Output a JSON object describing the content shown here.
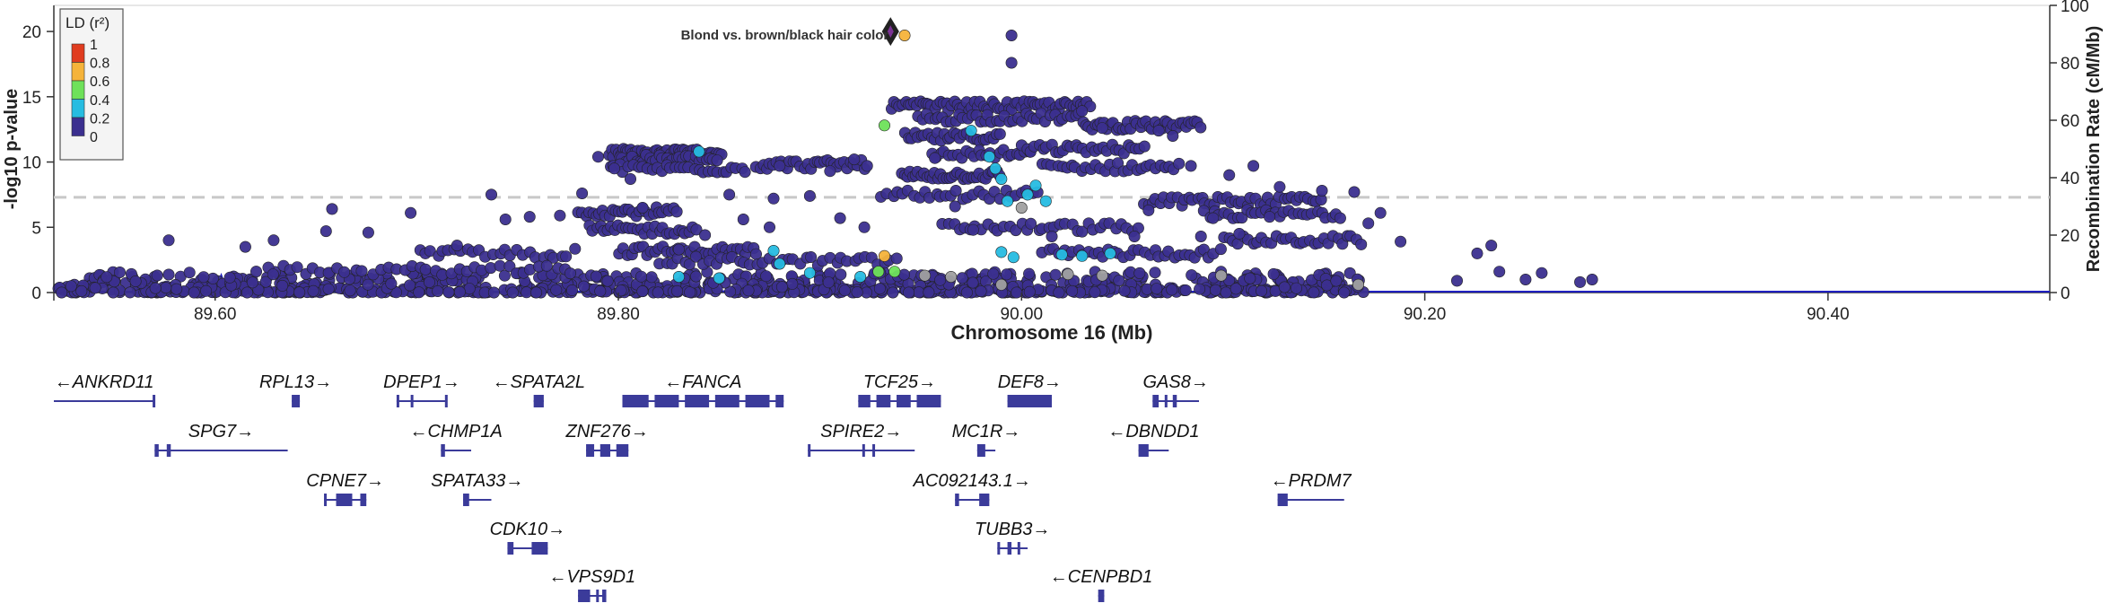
{
  "chart_data": {
    "type": "scatter",
    "title": "",
    "xlabel": "Chromosome 16 (Mb)",
    "ylabel_left": "-log10 p-value",
    "ylabel_right": "Recombination Rate (cM/Mb)",
    "xlim": [
      89.52,
      90.51
    ],
    "ylim_left": [
      0,
      22
    ],
    "ylim_right": [
      0,
      100
    ],
    "x_ticks": [
      "89.60",
      "89.80",
      "90.00",
      "90.20",
      "90.40"
    ],
    "x_tick_values": [
      89.6,
      89.8,
      90.0,
      90.2,
      90.4
    ],
    "y_ticks_left": [
      "0",
      "5",
      "10",
      "15",
      "20"
    ],
    "y_ticks_right": [
      "0",
      "20",
      "40",
      "60",
      "80",
      "100"
    ],
    "significance_line": 7.3,
    "grid": false,
    "colors": {
      "ld_0": "#3b2f8f",
      "ld_0_2": "#26bce1",
      "ld_0_4": "#6ee15a",
      "ld_0_6": "#f5b33a",
      "ld_0_8": "#e03c1f",
      "ld_na": "#a0a0a0",
      "recomb_line": "#1f1fbf",
      "gene": "#3b3b9a",
      "lead": "#7b3294"
    },
    "legend": {
      "title": "LD (r²)",
      "placement": "top-left",
      "labels": [
        "1",
        "0.8",
        "0.6",
        "0.4",
        "0.2",
        "0"
      ]
    },
    "lead_snp": {
      "x": 89.935,
      "y": 20.0,
      "label": "Blond vs. brown/black hair color"
    },
    "highlight_points": [
      {
        "x": 89.942,
        "y": 19.7,
        "ld": "ld_0_6"
      },
      {
        "x": 89.932,
        "y": 12.8,
        "ld": "ld_0_4"
      },
      {
        "x": 89.84,
        "y": 10.8,
        "ld": "ld_0_2"
      },
      {
        "x": 89.975,
        "y": 12.4,
        "ld": "ld_0_2"
      },
      {
        "x": 89.984,
        "y": 10.4,
        "ld": "ld_0_2"
      },
      {
        "x": 89.987,
        "y": 9.5,
        "ld": "ld_0_2"
      },
      {
        "x": 89.99,
        "y": 8.7,
        "ld": "ld_0_2"
      },
      {
        "x": 89.993,
        "y": 7.0,
        "ld": "ld_0_2"
      },
      {
        "x": 90.0,
        "y": 6.5,
        "ld": "ld_na"
      },
      {
        "x": 90.003,
        "y": 7.5,
        "ld": "ld_0_2"
      },
      {
        "x": 90.007,
        "y": 8.2,
        "ld": "ld_0_2"
      },
      {
        "x": 90.012,
        "y": 7.0,
        "ld": "ld_0_2"
      },
      {
        "x": 89.877,
        "y": 3.2,
        "ld": "ld_0_2"
      },
      {
        "x": 89.88,
        "y": 2.2,
        "ld": "ld_0_2"
      },
      {
        "x": 89.895,
        "y": 1.5,
        "ld": "ld_0_2"
      },
      {
        "x": 89.932,
        "y": 2.8,
        "ld": "ld_0_6"
      },
      {
        "x": 89.929,
        "y": 1.6,
        "ld": "ld_0_4"
      },
      {
        "x": 89.937,
        "y": 1.6,
        "ld": "ld_0_4"
      },
      {
        "x": 89.99,
        "y": 3.1,
        "ld": "ld_0_2"
      },
      {
        "x": 89.996,
        "y": 2.7,
        "ld": "ld_0_2"
      },
      {
        "x": 90.02,
        "y": 2.9,
        "ld": "ld_0_2"
      },
      {
        "x": 90.03,
        "y": 2.8,
        "ld": "ld_0_2"
      },
      {
        "x": 90.044,
        "y": 3.0,
        "ld": "ld_0_2"
      },
      {
        "x": 89.85,
        "y": 1.1,
        "ld": "ld_0_2"
      },
      {
        "x": 89.83,
        "y": 1.2,
        "ld": "ld_0_2"
      },
      {
        "x": 89.92,
        "y": 1.2,
        "ld": "ld_0_2"
      },
      {
        "x": 89.965,
        "y": 1.2,
        "ld": "ld_na"
      },
      {
        "x": 89.952,
        "y": 1.3,
        "ld": "ld_na"
      },
      {
        "x": 90.04,
        "y": 1.3,
        "ld": "ld_na"
      },
      {
        "x": 90.099,
        "y": 1.3,
        "ld": "ld_na"
      },
      {
        "x": 90.167,
        "y": 0.6,
        "ld": "ld_na"
      },
      {
        "x": 89.99,
        "y": 0.6,
        "ld": "ld_na"
      },
      {
        "x": 90.023,
        "y": 1.4,
        "ld": "ld_na"
      }
    ],
    "sparse_points": [
      {
        "x": 89.577,
        "y": 4.0
      },
      {
        "x": 89.629,
        "y": 4.0
      },
      {
        "x": 89.615,
        "y": 3.5
      },
      {
        "x": 89.658,
        "y": 6.4
      },
      {
        "x": 89.655,
        "y": 4.7
      },
      {
        "x": 89.676,
        "y": 4.6
      },
      {
        "x": 89.697,
        "y": 6.1
      },
      {
        "x": 89.737,
        "y": 7.5
      },
      {
        "x": 89.756,
        "y": 5.8
      },
      {
        "x": 89.744,
        "y": 5.6
      },
      {
        "x": 89.72,
        "y": 3.6
      },
      {
        "x": 89.782,
        "y": 7.6
      },
      {
        "x": 89.771,
        "y": 5.9
      },
      {
        "x": 89.877,
        "y": 7.2
      },
      {
        "x": 89.895,
        "y": 7.4
      },
      {
        "x": 89.995,
        "y": 19.7
      },
      {
        "x": 89.995,
        "y": 17.6
      },
      {
        "x": 90.226,
        "y": 3.0
      },
      {
        "x": 90.233,
        "y": 3.6
      },
      {
        "x": 90.237,
        "y": 1.6
      },
      {
        "x": 90.258,
        "y": 1.5
      },
      {
        "x": 90.25,
        "y": 1.0
      },
      {
        "x": 90.216,
        "y": 0.9
      },
      {
        "x": 90.277,
        "y": 0.8
      },
      {
        "x": 90.283,
        "y": 1.0
      },
      {
        "x": 90.188,
        "y": 3.9
      },
      {
        "x": 90.172,
        "y": 5.3
      },
      {
        "x": 90.178,
        "y": 6.1
      },
      {
        "x": 90.165,
        "y": 7.7
      },
      {
        "x": 90.149,
        "y": 7.8
      },
      {
        "x": 90.128,
        "y": 8.1
      },
      {
        "x": 90.115,
        "y": 9.7
      },
      {
        "x": 90.103,
        "y": 9.0
      },
      {
        "x": 90.084,
        "y": 9.7
      },
      {
        "x": 90.075,
        "y": 12.0
      },
      {
        "x": 90.068,
        "y": 12.4
      },
      {
        "x": 90.061,
        "y": 11.2
      },
      {
        "x": 90.04,
        "y": 12.6
      },
      {
        "x": 90.03,
        "y": 13.9
      },
      {
        "x": 89.917,
        "y": 10.2
      },
      {
        "x": 89.905,
        "y": 9.3
      },
      {
        "x": 89.88,
        "y": 9.7
      },
      {
        "x": 89.875,
        "y": 5.0
      },
      {
        "x": 89.862,
        "y": 5.6
      },
      {
        "x": 89.855,
        "y": 7.5
      },
      {
        "x": 89.812,
        "y": 6.5
      },
      {
        "x": 89.806,
        "y": 8.7
      },
      {
        "x": 89.798,
        "y": 9.5
      },
      {
        "x": 89.79,
        "y": 10.4
      },
      {
        "x": 89.83,
        "y": 3.3
      },
      {
        "x": 89.843,
        "y": 4.4
      },
      {
        "x": 89.922,
        "y": 5.0
      },
      {
        "x": 89.91,
        "y": 5.7
      },
      {
        "x": 89.957,
        "y": 10.3
      },
      {
        "x": 89.967,
        "y": 6.6
      },
      {
        "x": 89.976,
        "y": 4.8
      },
      {
        "x": 90.015,
        "y": 4.3
      },
      {
        "x": 90.056,
        "y": 4.3
      },
      {
        "x": 90.063,
        "y": 6.3
      },
      {
        "x": 90.089,
        "y": 4.3
      },
      {
        "x": 90.095,
        "y": 5.7
      },
      {
        "x": 90.108,
        "y": 4.5
      },
      {
        "x": 90.123,
        "y": 5.8
      }
    ],
    "bands": [
      {
        "x0": 89.795,
        "x1": 89.852,
        "y": 10.7,
        "n": 48
      },
      {
        "x0": 89.8,
        "x1": 89.85,
        "y": 10.2,
        "n": 30
      },
      {
        "x0": 89.795,
        "x1": 89.865,
        "y": 9.5,
        "n": 30
      },
      {
        "x0": 89.868,
        "x1": 89.925,
        "y": 9.8,
        "n": 34
      },
      {
        "x0": 89.935,
        "x1": 90.035,
        "y": 14.3,
        "n": 70
      },
      {
        "x0": 89.948,
        "x1": 90.03,
        "y": 13.4,
        "n": 40
      },
      {
        "x0": 90.03,
        "x1": 90.09,
        "y": 12.8,
        "n": 40
      },
      {
        "x0": 89.942,
        "x1": 89.99,
        "y": 11.9,
        "n": 30
      },
      {
        "x0": 89.94,
        "x1": 89.99,
        "y": 9.0,
        "n": 36
      },
      {
        "x0": 89.955,
        "x1": 90.005,
        "y": 10.6,
        "n": 24
      },
      {
        "x0": 90.0,
        "x1": 90.06,
        "y": 11.0,
        "n": 30
      },
      {
        "x0": 90.01,
        "x1": 90.08,
        "y": 9.6,
        "n": 30
      },
      {
        "x0": 90.06,
        "x1": 90.15,
        "y": 7.0,
        "n": 44
      },
      {
        "x0": 90.09,
        "x1": 90.16,
        "y": 6.0,
        "n": 30
      },
      {
        "x0": 89.78,
        "x1": 89.83,
        "y": 6.2,
        "n": 30
      },
      {
        "x0": 89.785,
        "x1": 89.84,
        "y": 4.8,
        "n": 30
      },
      {
        "x0": 89.8,
        "x1": 89.87,
        "y": 3.2,
        "n": 36
      },
      {
        "x0": 89.7,
        "x1": 89.78,
        "y": 3.0,
        "n": 26
      },
      {
        "x0": 89.82,
        "x1": 89.94,
        "y": 2.4,
        "n": 40
      },
      {
        "x0": 89.93,
        "x1": 90.01,
        "y": 7.5,
        "n": 30
      },
      {
        "x0": 89.96,
        "x1": 90.06,
        "y": 5.0,
        "n": 36
      },
      {
        "x0": 90.01,
        "x1": 90.1,
        "y": 3.0,
        "n": 36
      },
      {
        "x0": 90.1,
        "x1": 90.17,
        "y": 4.0,
        "n": 30
      },
      {
        "x0": 89.62,
        "x1": 89.78,
        "y": 1.7,
        "n": 40
      }
    ],
    "baseline": {
      "x0": 89.521,
      "x1": 90.17,
      "n": 900,
      "ymax": 1.6
    },
    "recombination": [
      [
        89.52,
        0.3
      ],
      [
        89.6,
        0.3
      ],
      [
        89.603,
        6.0
      ],
      [
        89.606,
        0.3
      ],
      [
        89.7,
        0.3
      ],
      [
        89.8,
        0.4
      ],
      [
        89.9,
        0.5
      ],
      [
        90.0,
        0.4
      ],
      [
        90.1,
        0.3
      ],
      [
        90.2,
        0.3
      ],
      [
        90.3,
        0.3
      ],
      [
        90.4,
        0.3
      ],
      [
        90.51,
        0.3
      ]
    ],
    "genes": [
      {
        "name": "ANKRD11",
        "label": "←ANKRD11",
        "start": 89.52,
        "end": 89.57,
        "row": 0,
        "exons": [
          [
            89.569,
            89.57
          ]
        ]
      },
      {
        "name": "RPL13",
        "label": "RPL13→",
        "start": 89.638,
        "end": 89.642,
        "row": 0,
        "exons": [
          [
            89.638,
            89.642
          ]
        ]
      },
      {
        "name": "DPEP1",
        "label": "DPEP1→",
        "start": 89.69,
        "end": 89.715,
        "row": 0,
        "exons": [
          [
            89.69,
            89.691
          ],
          [
            89.697,
            89.698
          ],
          [
            89.714,
            89.715
          ]
        ]
      },
      {
        "name": "SPATA2L",
        "label": "←SPATA2L",
        "start": 89.758,
        "end": 89.763,
        "row": 0,
        "exons": [
          [
            89.758,
            89.763
          ]
        ]
      },
      {
        "name": "FANCA",
        "label": "←FANCA",
        "start": 89.802,
        "end": 89.882,
        "row": 0,
        "exons": [
          [
            89.802,
            89.815
          ],
          [
            89.818,
            89.83
          ],
          [
            89.833,
            89.845
          ],
          [
            89.848,
            89.86
          ],
          [
            89.863,
            89.875
          ],
          [
            89.878,
            89.882
          ]
        ]
      },
      {
        "name": "TCF25",
        "label": "TCF25→",
        "start": 89.919,
        "end": 89.96,
        "row": 0,
        "exons": [
          [
            89.919,
            89.925
          ],
          [
            89.928,
            89.935
          ],
          [
            89.938,
            89.945
          ],
          [
            89.948,
            89.96
          ]
        ]
      },
      {
        "name": "DEF8",
        "label": "DEF8→",
        "start": 89.993,
        "end": 90.015,
        "row": 0,
        "exons": [
          [
            89.993,
            90.015
          ]
        ]
      },
      {
        "name": "GAS8",
        "label": "GAS8→",
        "start": 90.065,
        "end": 90.088,
        "row": 0,
        "exons": [
          [
            90.065,
            90.068
          ],
          [
            90.071,
            90.072
          ],
          [
            90.075,
            90.077
          ]
        ]
      },
      {
        "name": "SPG7",
        "label": "SPG7→",
        "start": 89.57,
        "end": 89.636,
        "row": 1,
        "exons": [
          [
            89.57,
            89.572
          ],
          [
            89.576,
            89.578
          ]
        ]
      },
      {
        "name": "CHMP1A",
        "label": "←CHMP1A",
        "start": 89.712,
        "end": 89.727,
        "row": 1,
        "exons": [
          [
            89.712,
            89.714
          ]
        ]
      },
      {
        "name": "ZNF276",
        "label": "ZNF276→",
        "start": 89.784,
        "end": 89.805,
        "row": 1,
        "exons": [
          [
            89.784,
            89.788
          ],
          [
            89.791,
            89.796
          ],
          [
            89.799,
            89.805
          ]
        ]
      },
      {
        "name": "SPIRE2",
        "label": "SPIRE2→",
        "start": 89.894,
        "end": 89.947,
        "row": 1,
        "exons": [
          [
            89.894,
            89.895
          ],
          [
            89.921,
            89.922
          ],
          [
            89.926,
            89.927
          ]
        ]
      },
      {
        "name": "MC1R",
        "label": "MC1R→",
        "start": 89.978,
        "end": 89.987,
        "row": 1,
        "exons": [
          [
            89.978,
            89.982
          ]
        ]
      },
      {
        "name": "DBNDD1",
        "label": "←DBNDD1",
        "start": 90.058,
        "end": 90.073,
        "row": 1,
        "exons": [
          [
            90.058,
            90.063
          ]
        ]
      },
      {
        "name": "CPNE7",
        "label": "CPNE7→",
        "start": 89.654,
        "end": 89.675,
        "row": 2,
        "exons": [
          [
            89.654,
            89.655
          ],
          [
            89.66,
            89.668
          ],
          [
            89.672,
            89.675
          ]
        ]
      },
      {
        "name": "SPATA33",
        "label": "SPATA33→",
        "start": 89.723,
        "end": 89.737,
        "row": 2,
        "exons": [
          [
            89.723,
            89.726
          ]
        ]
      },
      {
        "name": "AC092143.1",
        "label": "AC092143.1→",
        "start": 89.967,
        "end": 89.984,
        "row": 2,
        "exons": [
          [
            89.967,
            89.969
          ],
          [
            89.979,
            89.984
          ]
        ]
      },
      {
        "name": "PRDM7",
        "label": "←PRDM7",
        "start": 90.127,
        "end": 90.16,
        "row": 2,
        "exons": [
          [
            90.127,
            90.132
          ]
        ]
      },
      {
        "name": "CDK10",
        "label": "CDK10→",
        "start": 89.745,
        "end": 89.765,
        "row": 3,
        "exons": [
          [
            89.745,
            89.748
          ],
          [
            89.757,
            89.765
          ]
        ]
      },
      {
        "name": "TUBB3",
        "label": "TUBB3→",
        "start": 89.988,
        "end": 90.003,
        "row": 3,
        "exons": [
          [
            89.988,
            89.989
          ],
          [
            89.993,
            89.995
          ],
          [
            89.998,
            89.999
          ]
        ]
      },
      {
        "name": "VPS9D1",
        "label": "←VPS9D1",
        "start": 89.78,
        "end": 89.794,
        "row": 4,
        "exons": [
          [
            89.78,
            89.786
          ],
          [
            89.789,
            89.79
          ],
          [
            89.792,
            89.794
          ]
        ]
      },
      {
        "name": "CENPBD1",
        "label": "←CENPBD1",
        "start": 90.038,
        "end": 90.041,
        "row": 4,
        "exons": [
          [
            90.038,
            90.041
          ]
        ]
      }
    ]
  }
}
